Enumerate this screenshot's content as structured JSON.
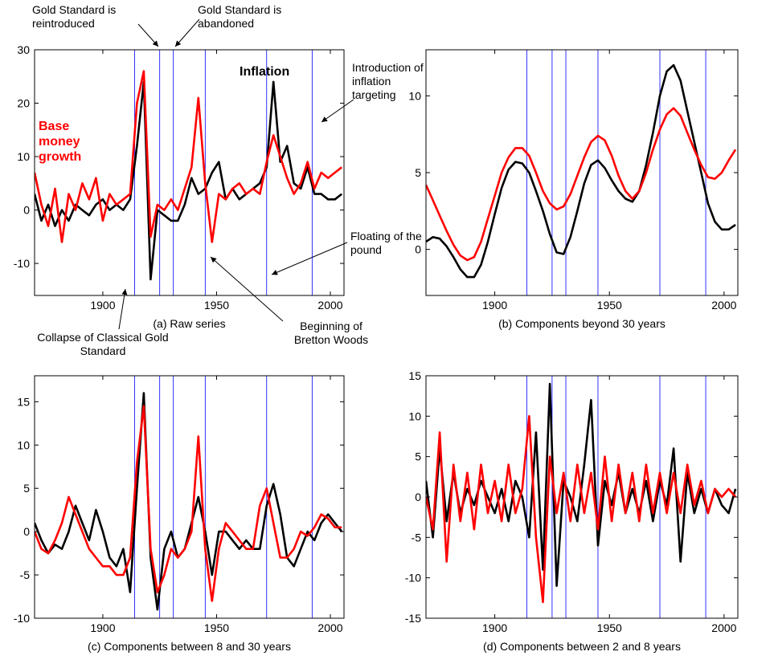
{
  "chart_data": [
    {
      "type": "line",
      "title": "(a) Raw series",
      "x": [
        1870,
        1873,
        1876,
        1879,
        1882,
        1885,
        1888,
        1891,
        1894,
        1897,
        1900,
        1903,
        1906,
        1909,
        1912,
        1915,
        1918,
        1921,
        1924,
        1927,
        1930,
        1933,
        1936,
        1939,
        1942,
        1945,
        1948,
        1951,
        1954,
        1957,
        1960,
        1963,
        1966,
        1969,
        1972,
        1975,
        1978,
        1981,
        1984,
        1987,
        1990,
        1993,
        1996,
        1999,
        2002,
        2005
      ],
      "series": [
        {
          "name": "Inflation",
          "color": "#000000",
          "values": [
            3,
            -2,
            1,
            -3,
            0,
            -2,
            1,
            0,
            -1,
            1,
            2,
            0,
            1,
            0,
            2,
            12,
            24,
            -13,
            0,
            -1,
            -2,
            -2,
            1,
            6,
            3,
            4,
            7,
            9,
            2,
            4,
            2,
            3,
            4,
            5,
            8,
            24,
            9,
            12,
            5,
            4,
            8,
            3,
            3,
            2,
            2,
            3
          ]
        },
        {
          "name": "Base money growth",
          "color": "#ff0000",
          "values": [
            7,
            1,
            -3,
            4,
            -6,
            3,
            0,
            5,
            2,
            6,
            -2,
            3,
            1,
            2,
            3,
            20,
            26,
            -5,
            1,
            0,
            2,
            0,
            4,
            8,
            21,
            5,
            -6,
            3,
            2,
            4,
            5,
            3,
            4,
            3,
            9,
            14,
            10,
            6,
            3,
            5,
            9,
            4,
            7,
            6,
            7,
            8
          ]
        }
      ],
      "xlim": [
        1870,
        2006
      ],
      "xticks": [
        1900,
        1950,
        2000
      ],
      "ylim": [
        -16,
        30
      ],
      "yticks": [
        -10,
        0,
        10,
        20,
        30
      ],
      "vlines": [
        1914,
        1925,
        1931,
        1945,
        1972,
        1992
      ],
      "vline_color": "#0000ff",
      "annotations": [
        "Gold Standard is reintroduced",
        "Gold Standard is abandoned",
        "Introduction of inflation targeting",
        "Floating of the pound",
        "Beginning of Bretton Woods",
        "Collapse of Classical Gold Standard"
      ]
    },
    {
      "type": "line",
      "title": "(b) Components beyond 30 years",
      "x": [
        1870,
        1873,
        1876,
        1879,
        1882,
        1885,
        1888,
        1891,
        1894,
        1897,
        1900,
        1903,
        1906,
        1909,
        1912,
        1915,
        1918,
        1921,
        1924,
        1927,
        1930,
        1933,
        1936,
        1939,
        1942,
        1945,
        1948,
        1951,
        1954,
        1957,
        1960,
        1963,
        1966,
        1969,
        1972,
        1975,
        1978,
        1981,
        1984,
        1987,
        1990,
        1993,
        1996,
        1999,
        2002,
        2005
      ],
      "series": [
        {
          "color": "#000000",
          "values": [
            0.5,
            0.8,
            0.7,
            0.2,
            -0.5,
            -1.3,
            -1.8,
            -1.8,
            -1.0,
            0.5,
            2.3,
            4.0,
            5.2,
            5.7,
            5.6,
            5.0,
            3.8,
            2.5,
            1.0,
            -0.2,
            -0.3,
            0.8,
            2.5,
            4.3,
            5.5,
            5.8,
            5.3,
            4.5,
            3.8,
            3.3,
            3.1,
            3.8,
            5.5,
            7.6,
            10.0,
            11.6,
            12.0,
            11.0,
            9.0,
            7.0,
            5.0,
            3.0,
            1.8,
            1.3,
            1.3,
            1.6
          ]
        },
        {
          "color": "#ff0000",
          "values": [
            4.2,
            3.2,
            2.2,
            1.2,
            0.3,
            -0.4,
            -0.7,
            -0.5,
            0.5,
            2.0,
            3.5,
            5.0,
            6.0,
            6.6,
            6.6,
            6.1,
            5.0,
            3.8,
            3.0,
            2.6,
            2.8,
            3.6,
            4.8,
            6.0,
            7.0,
            7.4,
            7.1,
            6.1,
            4.8,
            3.8,
            3.3,
            3.8,
            5.0,
            6.5,
            7.8,
            8.8,
            9.2,
            8.7,
            7.6,
            6.5,
            5.5,
            4.7,
            4.6,
            5.0,
            5.8,
            6.5
          ]
        }
      ],
      "xlim": [
        1870,
        2006
      ],
      "xticks": [
        1900,
        1950,
        2000
      ],
      "ylim": [
        -3,
        13
      ],
      "yticks": [
        0,
        5,
        10
      ],
      "vlines": [
        1914,
        1925,
        1931,
        1945,
        1972,
        1992
      ],
      "vline_color": "#0000ff"
    },
    {
      "type": "line",
      "title": "(c) Components between 8 and 30 years",
      "x": [
        1870,
        1873,
        1876,
        1879,
        1882,
        1885,
        1888,
        1891,
        1894,
        1897,
        1900,
        1903,
        1906,
        1909,
        1912,
        1915,
        1918,
        1921,
        1924,
        1927,
        1930,
        1933,
        1936,
        1939,
        1942,
        1945,
        1948,
        1951,
        1954,
        1957,
        1960,
        1963,
        1966,
        1969,
        1972,
        1975,
        1978,
        1981,
        1984,
        1987,
        1990,
        1993,
        1996,
        1999,
        2002,
        2005
      ],
      "series": [
        {
          "color": "#000000",
          "values": [
            1,
            -1,
            -2.5,
            -1.5,
            -2,
            0,
            3,
            1,
            -1,
            2.5,
            0,
            -3,
            -4,
            -2,
            -7,
            5,
            16,
            -3,
            -9,
            -2,
            0,
            -3,
            -2,
            1,
            4,
            0,
            -5,
            0,
            0,
            -1,
            -2,
            -1,
            -2,
            -2,
            3,
            5.5,
            2,
            -3,
            -4,
            -2,
            0,
            -1,
            1,
            2,
            1,
            0
          ]
        },
        {
          "color": "#ff0000",
          "values": [
            0,
            -2,
            -2.5,
            -1,
            1,
            4,
            2,
            0,
            -2,
            -3,
            -4,
            -4,
            -5,
            -5,
            -3,
            8,
            14.5,
            -2,
            -7,
            -5,
            -2,
            -3,
            -2,
            0,
            11,
            -2,
            -8,
            -2,
            1,
            0,
            -1,
            -2,
            -2,
            3,
            5,
            1,
            -3,
            -3,
            -2,
            0,
            -0.5,
            0.5,
            2,
            1.5,
            0.5,
            0.5
          ]
        }
      ],
      "xlim": [
        1870,
        2006
      ],
      "xticks": [
        1900,
        1950,
        2000
      ],
      "ylim": [
        -10,
        18
      ],
      "yticks": [
        -10,
        -5,
        0,
        5,
        10,
        15
      ],
      "vlines": [
        1914,
        1925,
        1931,
        1945,
        1972,
        1992
      ],
      "vline_color": "#0000ff"
    },
    {
      "type": "line",
      "title": "(d) Components between 2 and 8 years",
      "x": [
        1870,
        1873,
        1876,
        1879,
        1882,
        1885,
        1888,
        1891,
        1894,
        1897,
        1900,
        1903,
        1906,
        1909,
        1912,
        1915,
        1918,
        1921,
        1924,
        1927,
        1930,
        1933,
        1936,
        1939,
        1942,
        1945,
        1948,
        1951,
        1954,
        1957,
        1960,
        1963,
        1966,
        1969,
        1972,
        1975,
        1978,
        1981,
        1984,
        1987,
        1990,
        1993,
        1996,
        1999,
        2002,
        2005
      ],
      "series": [
        {
          "color": "#000000",
          "values": [
            2,
            -5,
            6,
            -3,
            3,
            -2,
            1,
            -1,
            2,
            0,
            -2,
            1,
            -3,
            2,
            0,
            -5,
            8,
            -9,
            14,
            -11,
            2,
            0,
            -3,
            4,
            12,
            -6,
            2,
            -1,
            3,
            -2,
            1,
            -2,
            2,
            -3,
            2,
            -1,
            6,
            -8,
            3,
            -2,
            1,
            -2,
            1,
            -1,
            -2,
            1
          ]
        },
        {
          "color": "#ff0000",
          "values": [
            0,
            -4,
            8,
            -8,
            4,
            -3,
            3,
            -4,
            4,
            -2,
            2,
            -3,
            4,
            -2,
            1,
            10,
            -5,
            -13,
            5,
            -2,
            3,
            -3,
            4,
            -2,
            3,
            -4,
            5,
            -3,
            4,
            -2,
            3,
            -3,
            4,
            -2,
            3,
            -2,
            3,
            -2,
            4,
            -1,
            2,
            -2,
            1,
            0,
            1,
            0
          ]
        }
      ],
      "xlim": [
        1870,
        2006
      ],
      "xticks": [
        1900,
        1950,
        2000
      ],
      "ylim": [
        -15,
        15
      ],
      "yticks": [
        -15,
        -10,
        -5,
        0,
        5,
        10,
        15
      ],
      "vlines": [
        1914,
        1925,
        1931,
        1945,
        1972,
        1992
      ],
      "vline_color": "#0000ff"
    }
  ]
}
